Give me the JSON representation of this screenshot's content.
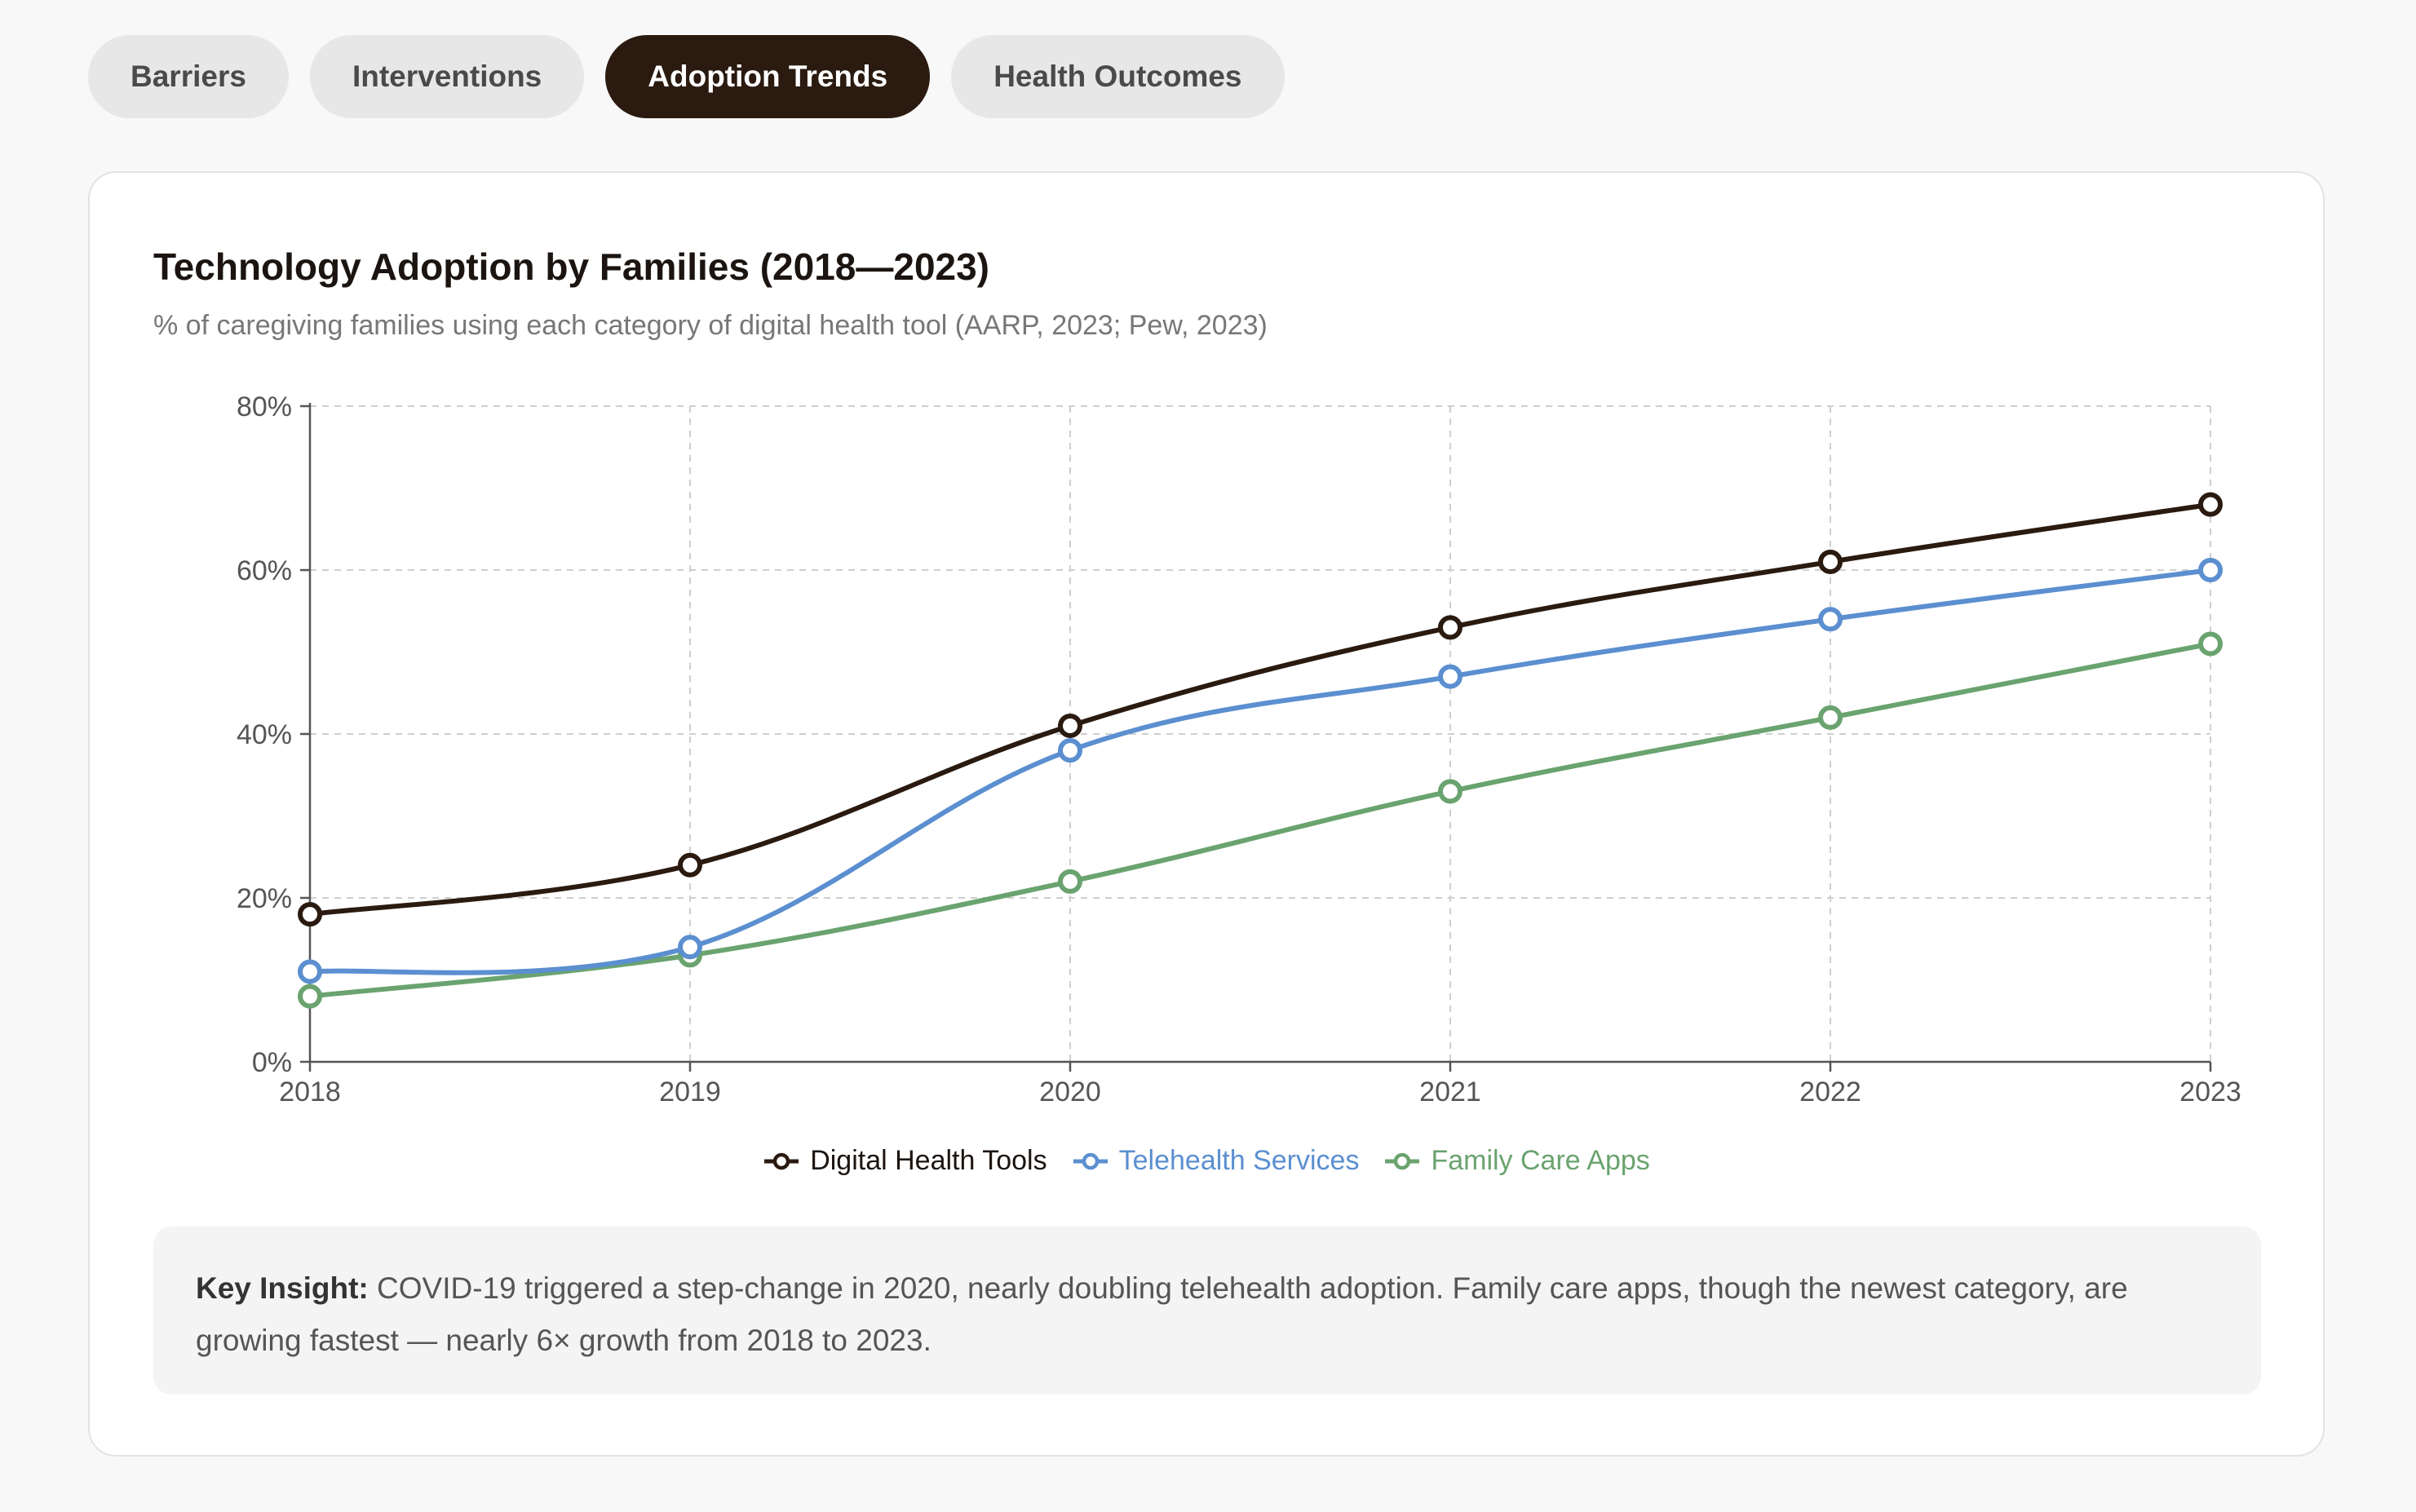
{
  "tabs": [
    {
      "label": "Barriers",
      "active": false
    },
    {
      "label": "Interventions",
      "active": false
    },
    {
      "label": "Adoption Trends",
      "active": true
    },
    {
      "label": "Health Outcomes",
      "active": false
    }
  ],
  "card": {
    "title": "Technology Adoption by Families (2018—2023)",
    "subtitle": "% of caregiving families using each category of digital health tool (AARP, 2023; Pew, 2023)"
  },
  "chart_data": {
    "type": "line",
    "title": "Technology Adoption by Families (2018—2023)",
    "subtitle": "% of caregiving families using each category of digital health tool (AARP, 2023; Pew, 2023)",
    "x": [
      "2018",
      "2019",
      "2020",
      "2021",
      "2022",
      "2023"
    ],
    "ylim": [
      0,
      80
    ],
    "y_ticks": [
      0,
      20,
      40,
      60,
      80
    ],
    "y_tick_labels": [
      "0%",
      "20%",
      "40%",
      "60%",
      "80%"
    ],
    "grid": true,
    "legend_position": "bottom-center",
    "series": [
      {
        "name": "Digital Health Tools",
        "color": "#2a1a10",
        "values": [
          18,
          24,
          41,
          53,
          61,
          68
        ]
      },
      {
        "name": "Telehealth Services",
        "color": "#5b8fd0",
        "values": [
          11,
          14,
          38,
          47,
          54,
          60
        ]
      },
      {
        "name": "Family Care Apps",
        "color": "#6aa36f",
        "values": [
          8,
          13,
          22,
          33,
          42,
          51
        ]
      }
    ]
  },
  "insight": {
    "label": "Key Insight:",
    "text": " COVID-19 triggered a step-change in 2020, nearly doubling telehealth adoption. Family care apps, though the newest category, are growing fastest — nearly 6× growth from 2018 to 2023."
  }
}
